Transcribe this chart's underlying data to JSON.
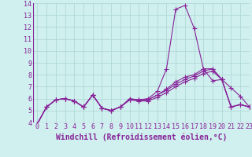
{
  "xlabel": "Windchill (Refroidissement éolien,°C)",
  "background_color": "#cff0ee",
  "grid_color": "#b0d8d8",
  "line_color": "#882299",
  "xlim": [
    -0.5,
    23
  ],
  "ylim": [
    4,
    14
  ],
  "xticks": [
    0,
    1,
    2,
    3,
    4,
    5,
    6,
    7,
    8,
    9,
    10,
    11,
    12,
    13,
    14,
    15,
    16,
    17,
    18,
    19,
    20,
    21,
    22,
    23
  ],
  "yticks": [
    4,
    5,
    6,
    7,
    8,
    9,
    10,
    11,
    12,
    13,
    14
  ],
  "series": [
    [
      3.9,
      5.3,
      5.9,
      6.0,
      5.8,
      5.3,
      6.3,
      5.2,
      5.0,
      5.3,
      6.0,
      5.9,
      6.0,
      6.6,
      8.5,
      13.5,
      13.8,
      11.9,
      8.5,
      7.5,
      7.6,
      6.9,
      6.2,
      5.3
    ],
    [
      3.9,
      5.3,
      5.9,
      6.0,
      5.8,
      5.3,
      6.3,
      5.2,
      5.0,
      5.3,
      5.9,
      5.8,
      5.8,
      6.1,
      6.5,
      7.0,
      7.4,
      7.7,
      8.1,
      8.3,
      7.6,
      5.3,
      5.5,
      5.3
    ],
    [
      3.9,
      5.3,
      5.9,
      6.0,
      5.8,
      5.3,
      6.3,
      5.2,
      5.0,
      5.3,
      5.9,
      5.9,
      5.9,
      6.3,
      6.8,
      7.4,
      7.8,
      8.0,
      8.5,
      8.5,
      7.6,
      5.3,
      5.5,
      5.3
    ],
    [
      3.9,
      5.3,
      5.9,
      6.0,
      5.8,
      5.3,
      6.3,
      5.2,
      5.0,
      5.3,
      5.9,
      5.9,
      5.9,
      6.3,
      6.7,
      7.2,
      7.6,
      7.9,
      8.3,
      8.5,
      7.6,
      5.3,
      5.5,
      5.3
    ]
  ],
  "marker": "+",
  "markersize": 4,
  "linewidth": 0.8,
  "font_color": "#882299",
  "tick_fontsize": 6,
  "xlabel_fontsize": 7
}
